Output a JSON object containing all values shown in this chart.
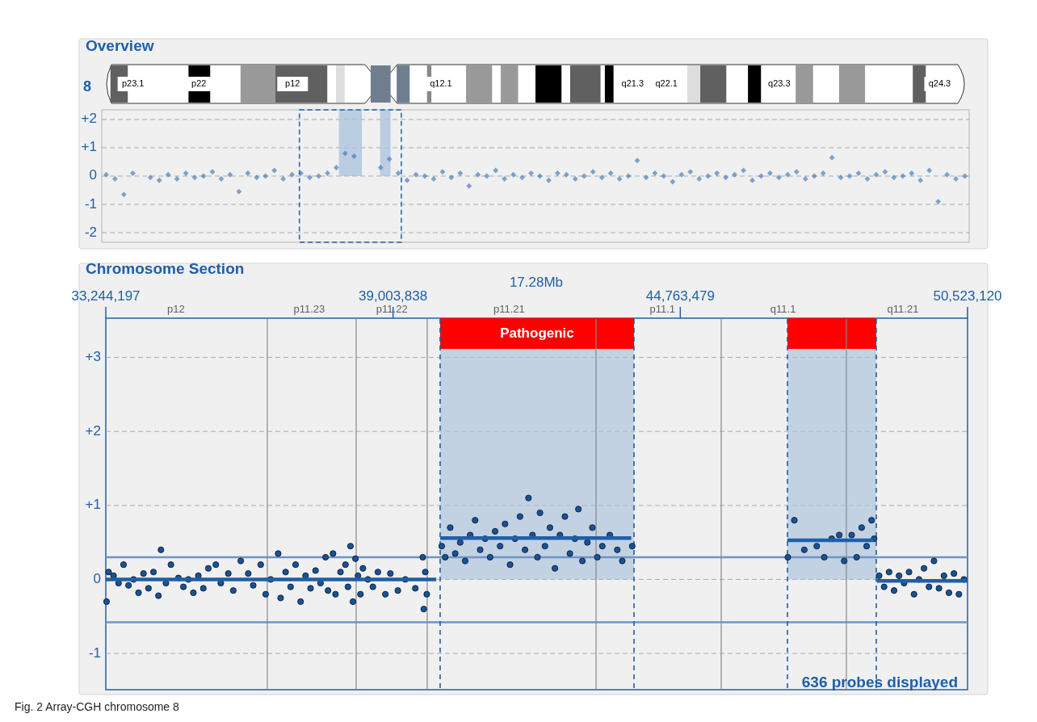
{
  "chart_data": [
    {
      "type": "scatter",
      "title": "Overview",
      "categories": [
        null,
        null,
        null,
        null,
        null,
        null,
        null,
        null,
        null,
        null,
        null,
        null,
        null,
        null,
        null,
        null,
        null,
        null,
        null,
        null,
        null,
        null,
        null,
        null,
        null,
        null,
        null,
        null,
        null,
        null,
        null,
        null,
        null,
        null,
        null,
        null,
        null,
        null,
        null,
        null,
        null,
        null,
        null,
        null,
        null,
        null,
        null,
        null,
        null,
        null,
        null,
        null,
        null,
        null,
        null,
        null,
        null,
        null,
        null,
        null,
        null,
        null,
        null,
        null,
        null,
        null,
        null,
        null,
        null,
        null,
        null,
        null,
        null,
        null,
        null,
        null,
        null,
        null,
        null,
        null,
        null,
        null,
        null,
        null,
        null,
        null,
        null,
        null,
        null,
        null,
        null,
        null,
        null,
        null,
        null,
        null,
        null,
        null
      ],
      "ylim": [
        -2.34,
        2.34
      ],
      "yticks": [
        {
          "value": 2,
          "label": "+2"
        },
        {
          "value": 1,
          "label": "+1"
        },
        0,
        -1,
        -2
      ],
      "grid": "y",
      "tick_labels": "y",
      "marker": "diamond",
      "annotations": [
        "8",
        "p23.1",
        "p22",
        "p12",
        "q12.1",
        "q21.3",
        "q22.1",
        "q23.3",
        "q24.3"
      ],
      "series": [
        {
          "color": "#2f6db5",
          "values": [
            0.05,
            -0.1,
            -0.65,
            0.1,
            null,
            -0.05,
            -0.15,
            0.05,
            -0.1,
            0.1,
            -0.05,
            0.0,
            0.15,
            -0.1,
            0.05,
            -0.55,
            0.1,
            -0.05,
            0.0,
            0.2,
            -0.1,
            0.05,
            0.1,
            -0.05,
            0.0,
            0.1,
            0.3,
            0.8,
            0.7,
            null,
            null,
            0.3,
            0.6,
            0.1,
            -0.15,
            0.05,
            0.0,
            -0.1,
            0.15,
            -0.05,
            0.1,
            -0.35,
            0.05,
            0.0,
            0.2,
            -0.1,
            0.05,
            -0.05,
            0.1,
            0.0,
            -0.15,
            0.1,
            0.05,
            -0.1,
            0.0,
            0.15,
            -0.05,
            0.1,
            -0.1,
            0.0,
            0.55,
            -0.05,
            0.1,
            0.0,
            -0.2,
            0.05,
            0.15,
            -0.1,
            0.0,
            0.1,
            -0.05,
            0.05,
            0.2,
            -0.15,
            0.0,
            0.1,
            -0.05,
            0.05,
            0.15,
            -0.1,
            0.0,
            0.1,
            0.65,
            -0.05,
            0.0,
            0.1,
            -0.1,
            0.05,
            0.15,
            -0.05,
            0.0,
            0.1,
            -0.15,
            0.2,
            -0.9,
            0.05,
            -0.1,
            0.0
          ]
        }
      ]
    },
    {
      "type": "scatter",
      "title": "Chromosome Section",
      "xlim": [
        33244197,
        50523120
      ],
      "xticks": [
        {
          "value": 33244197,
          "label": "33,244,197"
        },
        {
          "value": 39003838,
          "label": "39,003,838"
        },
        {
          "value": 44763479,
          "label": "44,763,479"
        },
        {
          "value": 50523120,
          "label": "50,523,120"
        }
      ],
      "ylim": [
        -1.49,
        3.53
      ],
      "yticks": [
        {
          "value": 3,
          "label": "+3"
        },
        {
          "value": 2,
          "label": "+2"
        },
        {
          "value": 1,
          "label": "+1"
        },
        0,
        -1
      ],
      "grid": "y",
      "annotations": [
        "17.28Mb",
        "636 probes displayed",
        "Fig. 2 Array-CGH chromosome 8",
        "p12",
        "p11.23",
        "p11.22",
        "p11.21",
        "p11.1",
        "q11.1",
        "q11.21"
      ],
      "ref_lines": [
        {
          "axis": "y",
          "value": 0.3,
          "color": "#6f94c4"
        },
        {
          "axis": "y",
          "value": -0.58,
          "color": "#6f94c4"
        },
        {
          "axis": "x",
          "value": 36483000,
          "color": "#888888"
        },
        {
          "axis": "x",
          "value": 38264000,
          "color": "#888888"
        },
        {
          "axis": "x",
          "value": 39689000,
          "color": "#888888"
        },
        {
          "axis": "x",
          "value": 43074000,
          "color": "#888888"
        },
        {
          "axis": "x",
          "value": 45584000,
          "color": "#888888"
        },
        {
          "axis": "x",
          "value": 48094000,
          "color": "#888888"
        },
        {
          "axis": "x",
          "value": 39948000,
          "color": "#1f5fa8",
          "line_style": "dashed"
        },
        {
          "axis": "x",
          "value": 43835000,
          "color": "#1f5fa8",
          "line_style": "dashed"
        },
        {
          "axis": "x",
          "value": 46912000,
          "color": "#1f5fa8",
          "line_style": "dashed"
        },
        {
          "axis": "x",
          "value": 48693000,
          "color": "#1f5fa8",
          "line_style": "dashed"
        }
      ],
      "bands": [
        {
          "axis": "x",
          "from": 39948000,
          "to": 43835000,
          "label": "Pathogenic",
          "color": "#a9c1dc"
        },
        {
          "axis": "x",
          "from": 46912000,
          "to": 48693000,
          "color": "#a9c1dc"
        }
      ],
      "series": [
        {
          "color": "#1a5296",
          "x": [
            33260000,
            33300000,
            33400000,
            33500000,
            33600000,
            33700000,
            33800000,
            33900000,
            34000000,
            34100000,
            34200000,
            34300000,
            34350000,
            34450000,
            34550000,
            34700000,
            34800000,
            34900000,
            35000000,
            35100000,
            35200000,
            35300000,
            35450000,
            35550000,
            35700000,
            35800000,
            35950000,
            36100000,
            36200000,
            36350000,
            36450000,
            36550000,
            36700000,
            36750000,
            36850000,
            36950000,
            37050000,
            37150000,
            37250000,
            37350000,
            37450000,
            37550000,
            37650000,
            37700000,
            37800000,
            37850000,
            37950000,
            38050000,
            38100000,
            38150000,
            38200000,
            38250000,
            38300000,
            38350000,
            38400000,
            38500000,
            38600000,
            38700000,
            38850000,
            38950000,
            39100000,
            39250000,
            39450000,
            39600000,
            39620000,
            39650000,
            39680000,
            39980000,
            40050000,
            40150000,
            40250000,
            40350000,
            40450000,
            40550000,
            40650000,
            40750000,
            40850000,
            40950000,
            41050000,
            41150000,
            41250000,
            41350000,
            41450000,
            41550000,
            41650000,
            41720000,
            41800000,
            41900000,
            41950000,
            42050000,
            42150000,
            42250000,
            42350000,
            42450000,
            42550000,
            42650000,
            42720000,
            42800000,
            42900000,
            43000000,
            43100000,
            43200000,
            43350000,
            43500000,
            43600000,
            43800000,
            46920000,
            47050000,
            47250000,
            47500000,
            47650000,
            47800000,
            47950000,
            48050000,
            48200000,
            48300000,
            48400000,
            48500000,
            48600000,
            48650000,
            48750000,
            48850000,
            48950000,
            49050000,
            49150000,
            49250000,
            49350000,
            49450000,
            49550000,
            49650000,
            49750000,
            49850000,
            49950000,
            50050000,
            50150000,
            50250000,
            50350000,
            50450000
          ],
          "values": [
            -0.3,
            0.1,
            0.05,
            -0.05,
            0.2,
            -0.08,
            0.0,
            -0.18,
            0.08,
            -0.12,
            0.1,
            -0.22,
            0.4,
            -0.05,
            0.2,
            0.02,
            -0.1,
            0.0,
            -0.18,
            0.05,
            -0.12,
            0.15,
            0.2,
            -0.05,
            0.08,
            -0.15,
            0.25,
            0.08,
            -0.08,
            0.2,
            -0.2,
            0.0,
            0.35,
            -0.25,
            0.1,
            -0.1,
            0.2,
            -0.3,
            0.05,
            -0.12,
            0.12,
            -0.05,
            0.3,
            -0.15,
            0.35,
            -0.2,
            0.1,
            0.2,
            -0.1,
            0.45,
            -0.3,
            0.28,
            0.05,
            -0.2,
            0.15,
            0.0,
            -0.1,
            0.1,
            -0.2,
            0.08,
            -0.15,
            0.0,
            -0.12,
            0.3,
            -0.4,
            0.1,
            -0.2,
            0.45,
            0.3,
            0.7,
            0.35,
            0.5,
            0.25,
            0.6,
            0.8,
            0.4,
            0.55,
            0.3,
            0.65,
            0.45,
            0.75,
            0.2,
            0.55,
            0.85,
            0.4,
            1.1,
            0.6,
            0.3,
            0.9,
            0.45,
            0.7,
            0.15,
            0.6,
            0.85,
            0.35,
            0.55,
            0.95,
            0.25,
            0.5,
            0.7,
            0.3,
            0.45,
            0.6,
            0.4,
            0.25,
            0.45,
            0.3,
            0.8,
            0.4,
            0.45,
            0.3,
            0.55,
            0.6,
            0.25,
            0.6,
            0.3,
            0.7,
            0.45,
            0.8,
            0.55,
            0.05,
            -0.1,
            0.1,
            -0.15,
            0.05,
            -0.05,
            0.1,
            -0.2,
            0.0,
            0.15,
            -0.1,
            0.25,
            -0.12,
            0.05,
            -0.18,
            0.08,
            -0.2,
            0.0
          ]
        },
        {
          "type": "line",
          "color": "#1f5fa8",
          "x": [
            33244197,
            39870000
          ],
          "values": [
            0,
            0
          ]
        },
        {
          "type": "line",
          "color": "#1f5fa8",
          "x": [
            39950000,
            43780000
          ],
          "values": [
            0.56,
            0.56
          ]
        },
        {
          "type": "line",
          "color": "#1f5fa8",
          "x": [
            46910000,
            48630000
          ],
          "values": [
            0.53,
            0.53
          ]
        },
        {
          "type": "line",
          "color": "#1f5fa8",
          "x": [
            48700000,
            50523120
          ],
          "values": [
            -0.02,
            -0.02
          ]
        }
      ]
    }
  ]
}
